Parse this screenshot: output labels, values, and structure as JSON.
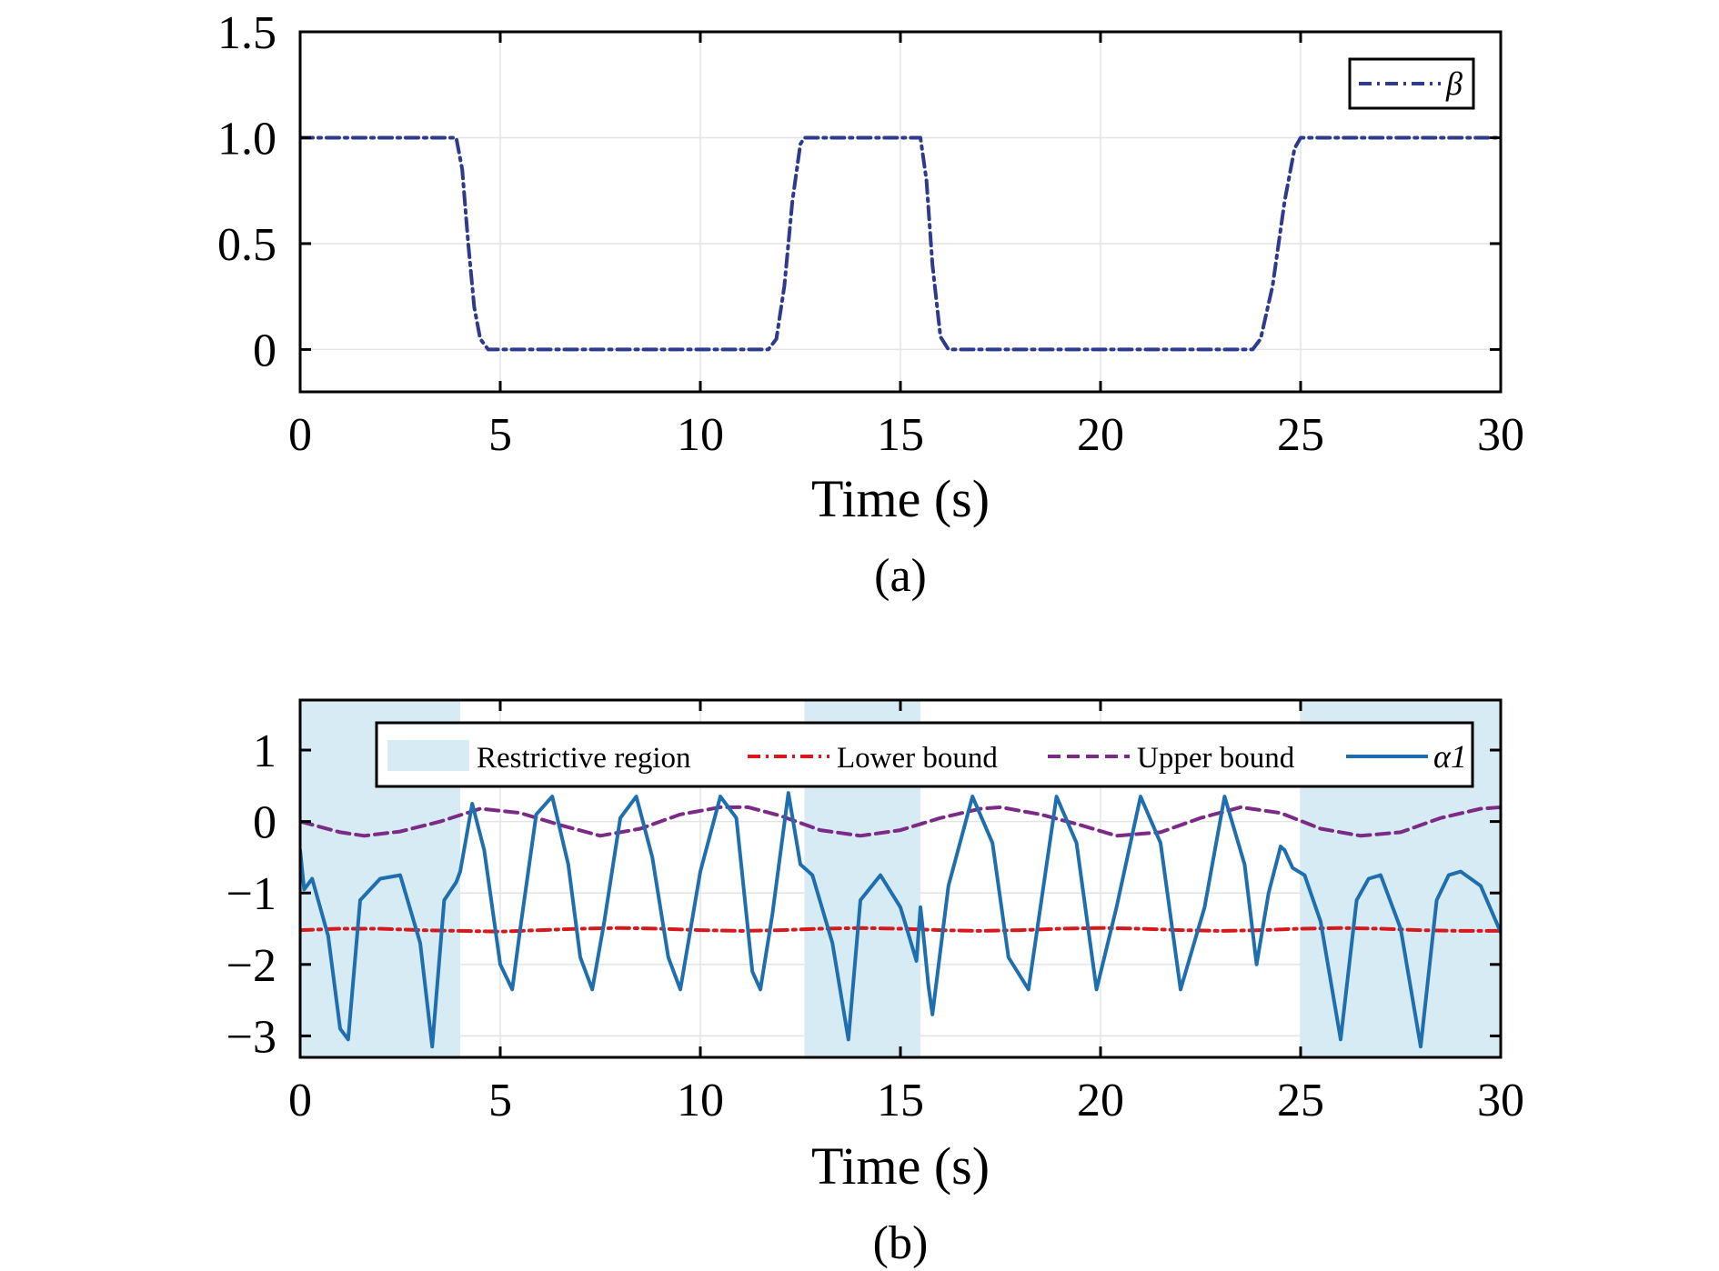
{
  "chart_data": [
    {
      "type": "line",
      "panel_label": "(a)",
      "xlabel": "Time (s)",
      "ylabel": "",
      "xlim": [
        0,
        30
      ],
      "ylim": [
        -0.2,
        1.5
      ],
      "x_ticks": [
        0,
        5,
        10,
        15,
        20,
        25,
        30
      ],
      "x_tick_labels": [
        "0",
        "5",
        "10",
        "15",
        "20",
        "25",
        "30"
      ],
      "y_ticks": [
        0,
        0.5,
        1.0,
        1.5
      ],
      "y_tick_labels": [
        "0",
        "0.5",
        "1.0",
        "1.5"
      ],
      "grid": true,
      "legend_position": "top-right",
      "series": [
        {
          "name": "β",
          "color": "#2e3a8c",
          "dash": "dash-dot",
          "x": [
            0,
            3.9,
            4.05,
            4.2,
            4.35,
            4.5,
            4.7,
            5.0,
            11.7,
            11.9,
            12.1,
            12.3,
            12.5,
            12.6,
            15.5,
            15.65,
            15.8,
            16.0,
            16.2,
            23.8,
            24.0,
            24.3,
            24.6,
            24.85,
            25.0,
            30
          ],
          "values": [
            1.0,
            1.0,
            0.85,
            0.5,
            0.2,
            0.05,
            0.0,
            0.0,
            0.0,
            0.05,
            0.3,
            0.7,
            0.97,
            1.0,
            1.0,
            0.8,
            0.4,
            0.06,
            0.0,
            0.0,
            0.05,
            0.3,
            0.7,
            0.95,
            1.0,
            1.0
          ]
        }
      ]
    },
    {
      "type": "line",
      "panel_label": "(b)",
      "xlabel": "Time (s)",
      "ylabel": "",
      "xlim": [
        0,
        30
      ],
      "ylim": [
        -3.3,
        1.7
      ],
      "x_ticks": [
        0,
        5,
        10,
        15,
        20,
        25,
        30
      ],
      "x_tick_labels": [
        "0",
        "5",
        "10",
        "15",
        "20",
        "25",
        "30"
      ],
      "y_ticks": [
        1,
        0,
        -1,
        -2,
        -3
      ],
      "y_tick_labels": [
        "1",
        "0",
        "−1",
        "−2",
        "−3"
      ],
      "grid": true,
      "legend_position": "top",
      "restrictive_region": {
        "name": "Restrictive region",
        "color": "#d6ebf4",
        "intervals": [
          [
            0,
            4.0
          ],
          [
            12.6,
            15.5
          ],
          [
            25.0,
            30
          ]
        ]
      },
      "series": [
        {
          "name": "Lower bound",
          "color": "#d7191c",
          "dash": "dash-dot",
          "x": [
            0,
            1,
            2,
            3,
            4,
            5,
            6,
            7,
            8,
            9,
            10,
            11,
            12,
            13,
            14,
            15,
            16,
            17,
            18,
            19,
            20,
            21,
            22,
            23,
            24,
            25,
            26,
            27,
            28,
            29,
            30
          ],
          "values": [
            -1.52,
            -1.5,
            -1.5,
            -1.52,
            -1.53,
            -1.54,
            -1.52,
            -1.5,
            -1.49,
            -1.5,
            -1.52,
            -1.53,
            -1.52,
            -1.5,
            -1.49,
            -1.5,
            -1.52,
            -1.53,
            -1.52,
            -1.5,
            -1.49,
            -1.5,
            -1.52,
            -1.53,
            -1.52,
            -1.5,
            -1.49,
            -1.5,
            -1.52,
            -1.53,
            -1.53
          ]
        },
        {
          "name": "Upper bound",
          "color": "#7b2a86",
          "dash": "dashed",
          "x": [
            0,
            1,
            1.6,
            2.5,
            3.5,
            4.5,
            5.5,
            6.5,
            7.5,
            8.5,
            9.5,
            10.5,
            11.2,
            12,
            13,
            14,
            15,
            16,
            17,
            17.5,
            18.5,
            19.5,
            20.4,
            21.5,
            22.5,
            23.5,
            24.5,
            25.5,
            26.5,
            27.5,
            28.5,
            29.5,
            30
          ],
          "values": [
            0.0,
            -0.15,
            -0.2,
            -0.14,
            0.0,
            0.18,
            0.12,
            -0.05,
            -0.2,
            -0.1,
            0.1,
            0.2,
            0.2,
            0.08,
            -0.12,
            -0.2,
            -0.12,
            0.05,
            0.18,
            0.2,
            0.1,
            -0.05,
            -0.2,
            -0.15,
            0.05,
            0.2,
            0.12,
            -0.1,
            -0.2,
            -0.15,
            0.05,
            0.18,
            0.2
          ]
        },
        {
          "name": "α1",
          "color": "#1f6fae",
          "dash": "solid",
          "x": [
            0,
            0.1,
            0.3,
            0.7,
            1.0,
            1.2,
            1.5,
            2.0,
            2.5,
            3.0,
            3.3,
            3.6,
            3.9,
            4.0,
            4.3,
            4.6,
            5.0,
            5.3,
            5.5,
            5.9,
            6.3,
            6.7,
            7.0,
            7.3,
            7.6,
            8.0,
            8.4,
            8.8,
            9.2,
            9.5,
            10.0,
            10.5,
            10.9,
            11.3,
            11.5,
            11.8,
            12.2,
            12.5,
            12.8,
            13.3,
            13.7,
            14.0,
            14.5,
            15.0,
            15.4,
            15.5,
            15.55,
            15.7,
            15.8,
            16.2,
            16.8,
            17.3,
            17.7,
            18.2,
            18.9,
            19.4,
            19.9,
            20.4,
            21.0,
            21.5,
            22.0,
            22.6,
            23.1,
            23.6,
            23.9,
            24.2,
            24.5,
            24.6,
            24.8,
            25.1,
            25.5,
            26.0,
            26.4,
            26.7,
            27.0,
            27.5,
            28.0,
            28.4,
            28.7,
            29.0,
            29.5,
            30.0
          ],
          "values": [
            -0.4,
            -0.95,
            -0.8,
            -1.6,
            -2.9,
            -3.05,
            -1.1,
            -0.8,
            -0.75,
            -1.7,
            -3.15,
            -1.1,
            -0.85,
            -0.7,
            0.25,
            -0.4,
            -2.0,
            -2.35,
            -1.5,
            0.1,
            0.35,
            -0.6,
            -1.9,
            -2.35,
            -1.4,
            0.05,
            0.35,
            -0.5,
            -1.9,
            -2.35,
            -0.7,
            0.35,
            0.05,
            -2.1,
            -2.35,
            -1.3,
            0.4,
            -0.6,
            -0.75,
            -1.7,
            -3.05,
            -1.1,
            -0.75,
            -1.2,
            -1.95,
            -1.2,
            -1.45,
            -2.3,
            -2.7,
            -0.9,
            0.35,
            -0.3,
            -1.9,
            -2.35,
            0.35,
            -0.3,
            -2.35,
            -1.2,
            0.35,
            -0.3,
            -2.35,
            -1.2,
            0.35,
            -0.6,
            -2.0,
            -1.0,
            -0.35,
            -0.4,
            -0.65,
            -0.75,
            -1.4,
            -3.05,
            -1.1,
            -0.8,
            -0.75,
            -1.5,
            -3.15,
            -1.1,
            -0.75,
            -0.7,
            -0.9,
            -1.55
          ]
        }
      ]
    }
  ]
}
